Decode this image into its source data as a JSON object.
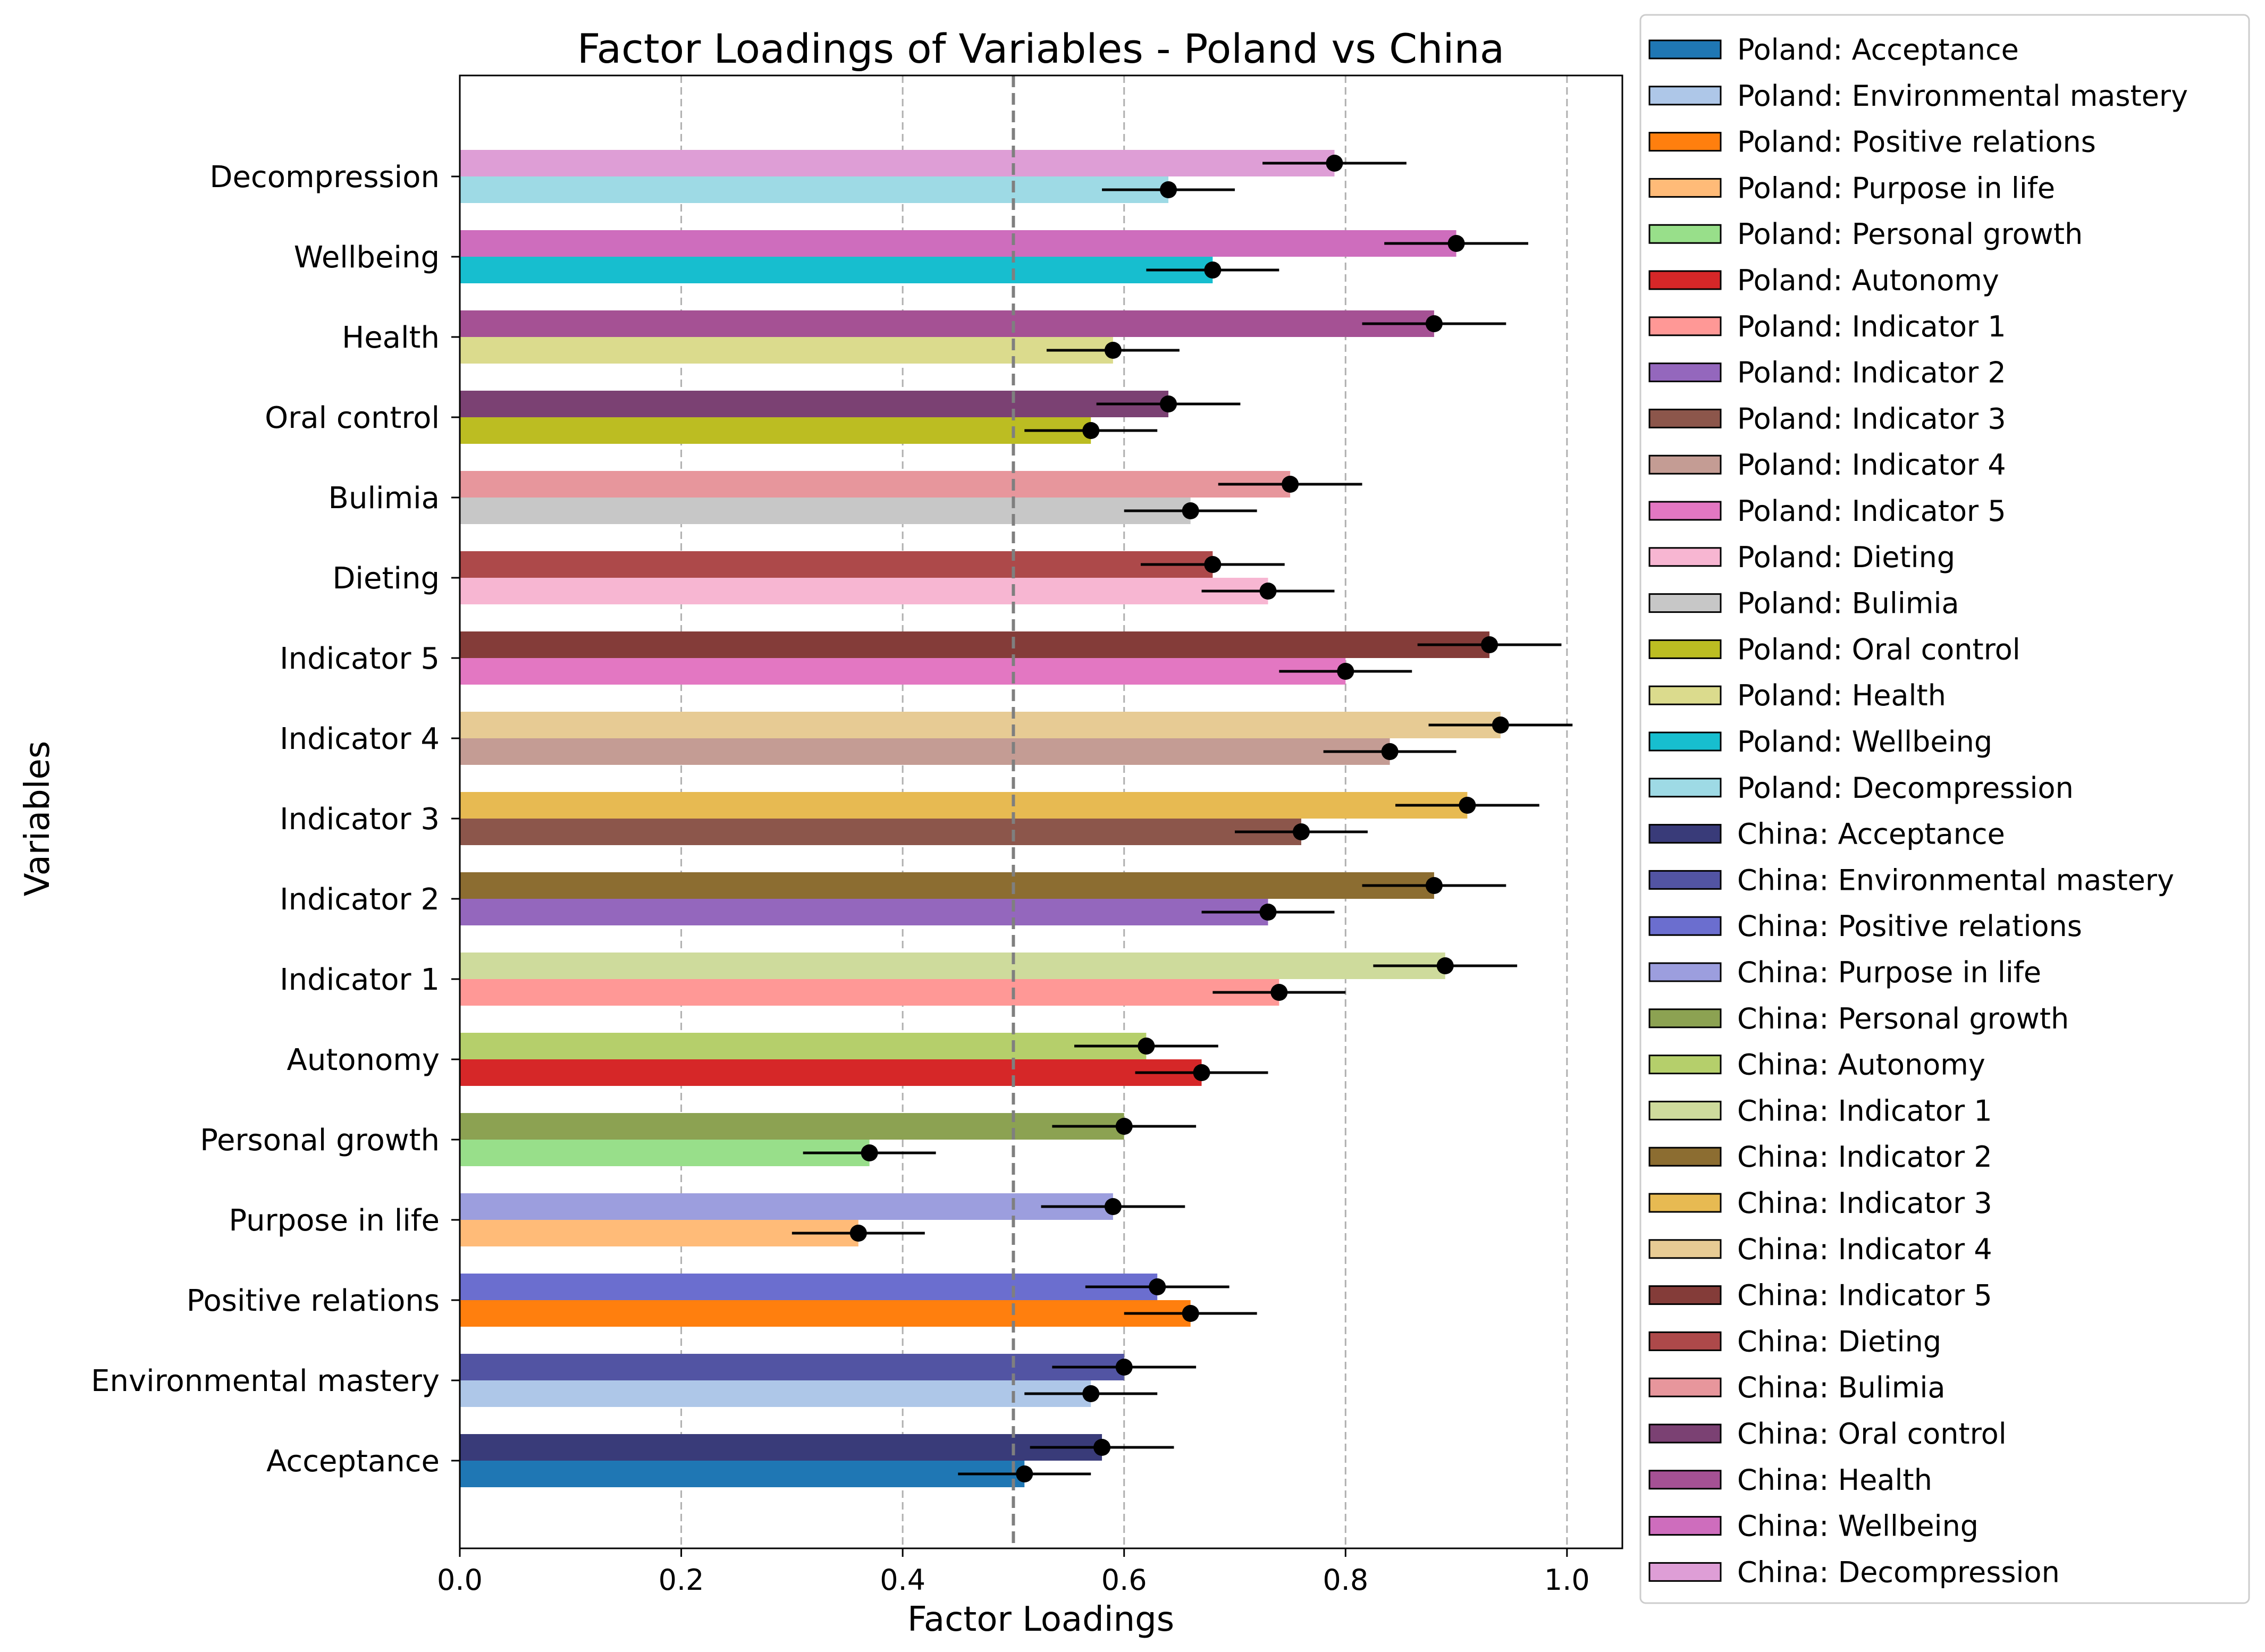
{
  "chart_data": {
    "type": "bar",
    "orientation": "horizontal",
    "title": "Factor Loadings of Variables - Poland vs China",
    "xlabel": "Factor Loadings",
    "ylabel": "Variables",
    "xlim": [
      0,
      1.05
    ],
    "xticks": [
      "0.0",
      "0.2",
      "0.4",
      "0.6",
      "0.8",
      "1.0"
    ],
    "xtick_values": [
      0,
      0.2,
      0.4,
      0.6,
      0.8,
      1.0
    ],
    "grid": "x-axis dashed",
    "reference_line": 0.5,
    "legend_placement": "outside right",
    "categories": [
      "Acceptance",
      "Environmental mastery",
      "Positive relations",
      "Purpose in life",
      "Personal growth",
      "Autonomy",
      "Indicator 1",
      "Indicator 2",
      "Indicator 3",
      "Indicator 4",
      "Indicator 5",
      "Dieting",
      "Bulimia",
      "Oral control",
      "Health",
      "Wellbeing",
      "Decompression"
    ],
    "series": [
      {
        "name": "Poland",
        "values": [
          0.51,
          0.57,
          0.66,
          0.36,
          0.37,
          0.67,
          0.74,
          0.73,
          0.76,
          0.84,
          0.8,
          0.73,
          0.66,
          0.57,
          0.59,
          0.68,
          0.64
        ],
        "errors": [
          0.06,
          0.06,
          0.06,
          0.06,
          0.06,
          0.06,
          0.06,
          0.06,
          0.06,
          0.06,
          0.06,
          0.06,
          0.06,
          0.06,
          0.06,
          0.06,
          0.06
        ],
        "colors": [
          "#1f77b4",
          "#aec7e8",
          "#ff7f0e",
          "#ffbb78",
          "#98df8a",
          "#d62728",
          "#ff9896",
          "#9467bd",
          "#8c564b",
          "#c49c94",
          "#e377c2",
          "#f7b6d2",
          "#c7c7c7",
          "#bcbd22",
          "#dbdb8d",
          "#17becf",
          "#9edae5"
        ]
      },
      {
        "name": "China",
        "values": [
          0.58,
          0.6,
          0.63,
          0.59,
          0.6,
          0.62,
          0.89,
          0.88,
          0.91,
          0.94,
          0.93,
          0.68,
          0.75,
          0.64,
          0.88,
          0.9,
          0.79
        ],
        "errors": [
          0.065,
          0.065,
          0.065,
          0.065,
          0.065,
          0.065,
          0.065,
          0.065,
          0.065,
          0.065,
          0.065,
          0.065,
          0.065,
          0.065,
          0.065,
          0.065,
          0.065
        ],
        "colors": [
          "#393b79",
          "#5254a3",
          "#6b6ecf",
          "#9c9ede",
          "#8ca252",
          "#b5cf6b",
          "#cedb9c",
          "#8c6d31",
          "#e7ba52",
          "#e7cb94",
          "#843c39",
          "#ad494a",
          "#e7969c",
          "#7b4173",
          "#a55194",
          "#ce6dbd",
          "#de9ed6"
        ]
      }
    ],
    "legend": [
      {
        "label": "Poland: Acceptance",
        "color": "#1f77b4"
      },
      {
        "label": "Poland: Environmental mastery",
        "color": "#aec7e8"
      },
      {
        "label": "Poland: Positive relations",
        "color": "#ff7f0e"
      },
      {
        "label": "Poland: Purpose in life",
        "color": "#ffbb78"
      },
      {
        "label": "Poland: Personal growth",
        "color": "#98df8a"
      },
      {
        "label": "Poland: Autonomy",
        "color": "#d62728"
      },
      {
        "label": "Poland: Indicator 1",
        "color": "#ff9896"
      },
      {
        "label": "Poland: Indicator 2",
        "color": "#9467bd"
      },
      {
        "label": "Poland: Indicator 3",
        "color": "#8c564b"
      },
      {
        "label": "Poland: Indicator 4",
        "color": "#c49c94"
      },
      {
        "label": "Poland: Indicator 5",
        "color": "#e377c2"
      },
      {
        "label": "Poland: Dieting",
        "color": "#f7b6d2"
      },
      {
        "label": "Poland: Bulimia",
        "color": "#c7c7c7"
      },
      {
        "label": "Poland: Oral control",
        "color": "#bcbd22"
      },
      {
        "label": "Poland: Health",
        "color": "#dbdb8d"
      },
      {
        "label": "Poland: Wellbeing",
        "color": "#17becf"
      },
      {
        "label": "Poland: Decompression",
        "color": "#9edae5"
      },
      {
        "label": "China: Acceptance",
        "color": "#393b79"
      },
      {
        "label": "China: Environmental mastery",
        "color": "#5254a3"
      },
      {
        "label": "China: Positive relations",
        "color": "#6b6ecf"
      },
      {
        "label": "China: Purpose in life",
        "color": "#9c9ede"
      },
      {
        "label": "China: Personal growth",
        "color": "#8ca252"
      },
      {
        "label": "China: Autonomy",
        "color": "#b5cf6b"
      },
      {
        "label": "China: Indicator 1",
        "color": "#cedb9c"
      },
      {
        "label": "China: Indicator 2",
        "color": "#8c6d31"
      },
      {
        "label": "China: Indicator 3",
        "color": "#e7ba52"
      },
      {
        "label": "China: Indicator 4",
        "color": "#e7cb94"
      },
      {
        "label": "China: Indicator 5",
        "color": "#843c39"
      },
      {
        "label": "China: Dieting",
        "color": "#ad494a"
      },
      {
        "label": "China: Bulimia",
        "color": "#e7969c"
      },
      {
        "label": "China: Oral control",
        "color": "#7b4173"
      },
      {
        "label": "China: Health",
        "color": "#a55194"
      },
      {
        "label": "China: Wellbeing",
        "color": "#ce6dbd"
      },
      {
        "label": "China: Decompression",
        "color": "#de9ed6"
      }
    ]
  }
}
